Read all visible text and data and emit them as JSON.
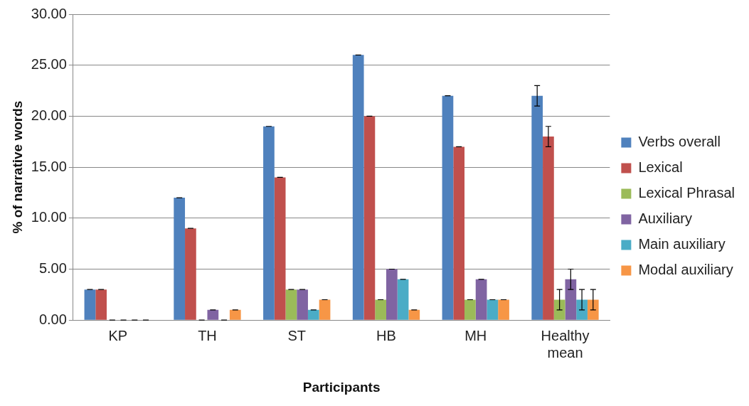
{
  "chart_data": {
    "type": "bar",
    "xlabel": "Participants",
    "ylabel": "% of narrative words",
    "categories": [
      "KP",
      "TH",
      "ST",
      "HB",
      "MH",
      "Healthy mean"
    ],
    "series": [
      {
        "name": "Verbs overall",
        "color": "#4f81bd",
        "values": [
          3,
          12,
          19,
          26,
          22,
          22
        ],
        "errors": [
          0,
          0,
          0,
          0,
          0,
          1
        ]
      },
      {
        "name": "Lexical",
        "color": "#c0504d",
        "values": [
          3,
          9,
          14,
          20,
          17,
          18
        ],
        "errors": [
          0,
          0,
          0,
          0,
          0,
          1
        ]
      },
      {
        "name": "Lexical Phrasal",
        "color": "#9bbb59",
        "values": [
          0,
          0,
          3,
          2,
          2,
          2
        ],
        "errors": [
          0,
          0,
          0,
          0,
          0,
          1
        ]
      },
      {
        "name": "Auxiliary",
        "color": "#8064a2",
        "values": [
          0,
          1,
          3,
          5,
          4,
          4
        ],
        "errors": [
          0,
          0,
          0,
          0,
          0,
          1
        ]
      },
      {
        "name": "Main auxiliary",
        "color": "#4bacc6",
        "values": [
          0,
          0,
          1,
          4,
          2,
          2
        ],
        "errors": [
          0,
          0,
          0,
          0,
          0,
          1
        ]
      },
      {
        "name": "Modal auxiliary",
        "color": "#f79646",
        "values": [
          0,
          1,
          2,
          1,
          2,
          2
        ],
        "errors": [
          0,
          0,
          0,
          0,
          0,
          1
        ]
      }
    ],
    "ylim": [
      0,
      30
    ],
    "yticks": [
      {
        "value": 0,
        "label": "0.00"
      },
      {
        "value": 5,
        "label": "5.00"
      },
      {
        "value": 10,
        "label": "10.00"
      },
      {
        "value": 15,
        "label": "15.00"
      },
      {
        "value": 20,
        "label": "20.00"
      },
      {
        "value": 25,
        "label": "25.00"
      },
      {
        "value": 30,
        "label": "30.00"
      }
    ],
    "grid": "y",
    "legend": "right"
  }
}
